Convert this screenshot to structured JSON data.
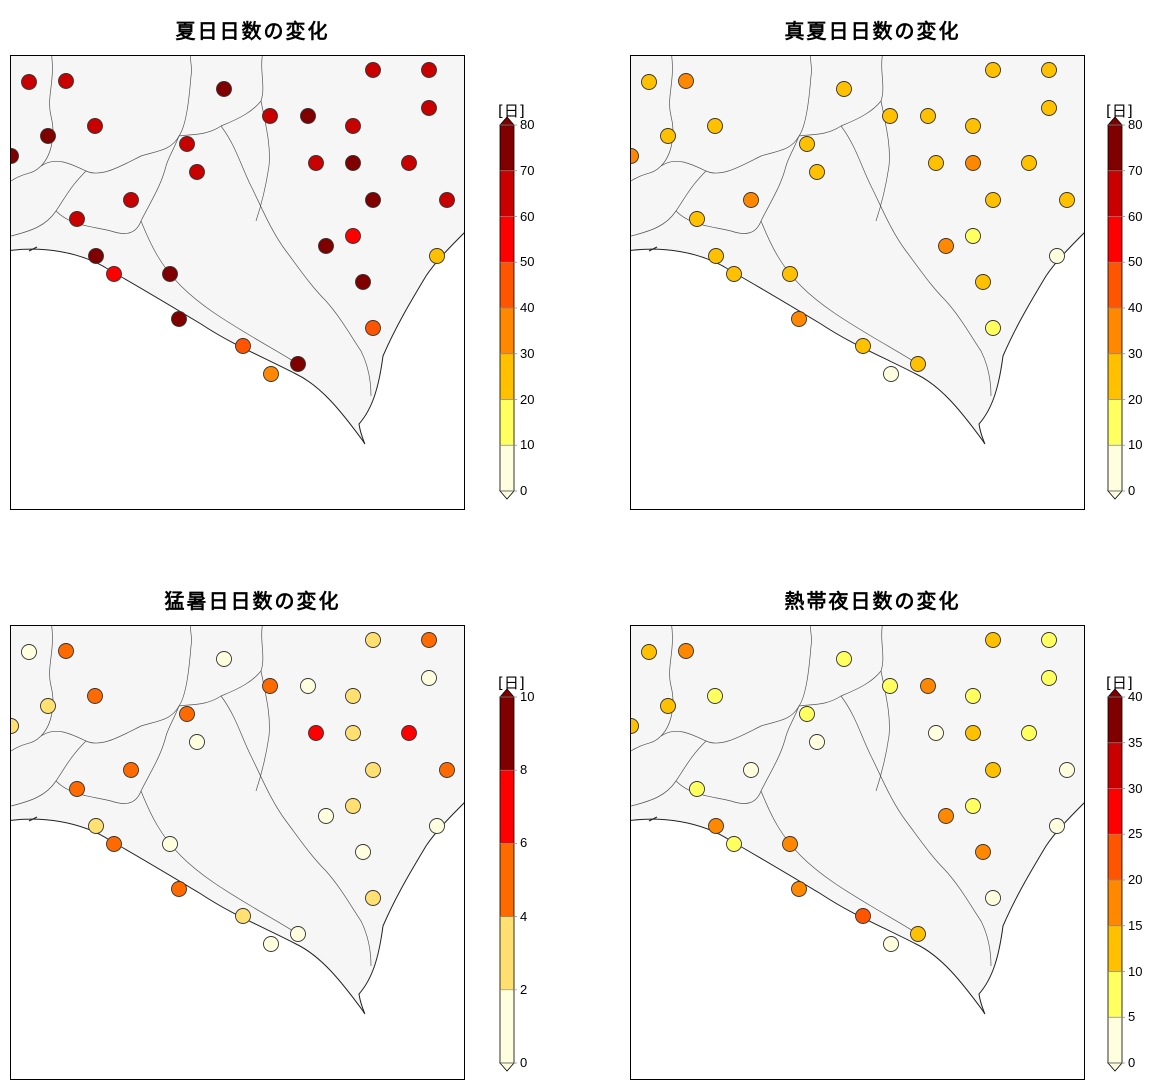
{
  "panels": [
    {
      "title": "夏日日数の変化",
      "legend": {
        "unit": "[日]",
        "ticks": [
          "80",
          "70",
          "60",
          "50",
          "40",
          "30",
          "20",
          "10",
          "0"
        ],
        "bin_colors": [
          "#FFFFE0",
          "#FFFF60",
          "#FFC000",
          "#FF8800",
          "#FF5500",
          "#FF0000",
          "#C80000",
          "#800000"
        ]
      },
      "stations": [
        {
          "id": "s01",
          "level": 6
        },
        {
          "id": "s02",
          "level": 6
        },
        {
          "id": "s03",
          "level": 7
        },
        {
          "id": "s04",
          "level": 6
        },
        {
          "id": "s05",
          "level": 6
        },
        {
          "id": "s06",
          "level": 7
        },
        {
          "id": "s07",
          "level": 6
        },
        {
          "id": "s08",
          "level": 6
        },
        {
          "id": "s09",
          "level": 6
        },
        {
          "id": "s10",
          "level": 7
        },
        {
          "id": "s11",
          "level": 6
        },
        {
          "id": "s12",
          "level": 6
        },
        {
          "id": "s13",
          "level": 7
        },
        {
          "id": "s14",
          "level": 6
        },
        {
          "id": "s15",
          "level": 6
        },
        {
          "id": "s16",
          "level": 7
        },
        {
          "id": "s17",
          "level": 6
        },
        {
          "id": "s18",
          "level": 6
        },
        {
          "id": "s19",
          "level": 7
        },
        {
          "id": "s20",
          "level": 6
        },
        {
          "id": "s21",
          "level": 6
        },
        {
          "id": "s22",
          "level": 2
        },
        {
          "id": "s23",
          "level": 7
        },
        {
          "id": "s24",
          "level": 7
        },
        {
          "id": "s25",
          "level": 5
        },
        {
          "id": "s26",
          "level": 5
        },
        {
          "id": "s27",
          "level": 7
        },
        {
          "id": "s28",
          "level": 7
        },
        {
          "id": "s29",
          "level": 7
        },
        {
          "id": "s30",
          "level": 4
        },
        {
          "id": "s31",
          "level": 4
        },
        {
          "id": "s32",
          "level": 3
        },
        {
          "id": "s33",
          "level": 7
        },
        {
          "id": "s34",
          "level": 7
        },
        {
          "id": "s35",
          "level": 7
        }
      ]
    },
    {
      "title": "真夏日日数の変化",
      "legend": {
        "unit": "[日]",
        "ticks": [
          "80",
          "70",
          "60",
          "50",
          "40",
          "30",
          "20",
          "10",
          "0"
        ],
        "bin_colors": [
          "#FFFFE0",
          "#FFFF60",
          "#FFC000",
          "#FF8800",
          "#FF5500",
          "#FF0000",
          "#C80000",
          "#800000"
        ]
      },
      "stations": [
        {
          "id": "s01",
          "level": 2
        },
        {
          "id": "s02",
          "level": 3
        },
        {
          "id": "s03",
          "level": 2
        },
        {
          "id": "s04",
          "level": 2
        },
        {
          "id": "s05",
          "level": 2
        },
        {
          "id": "s06",
          "level": 2
        },
        {
          "id": "s07",
          "level": 2
        },
        {
          "id": "s08",
          "level": 2
        },
        {
          "id": "s09",
          "level": 2
        },
        {
          "id": "s10",
          "level": 2
        },
        {
          "id": "s11",
          "level": 2
        },
        {
          "id": "s12",
          "level": 2
        },
        {
          "id": "s13",
          "level": 3
        },
        {
          "id": "s14",
          "level": 2
        },
        {
          "id": "s15",
          "level": 2
        },
        {
          "id": "s16",
          "level": 3
        },
        {
          "id": "s17",
          "level": 2
        },
        {
          "id": "s18",
          "level": 3
        },
        {
          "id": "s19",
          "level": 2
        },
        {
          "id": "s20",
          "level": 2
        },
        {
          "id": "s21",
          "level": 2
        },
        {
          "id": "s22",
          "level": 0
        },
        {
          "id": "s23",
          "level": 2
        },
        {
          "id": "s24",
          "level": 3
        },
        {
          "id": "s25",
          "level": 1
        },
        {
          "id": "s26",
          "level": 2
        },
        {
          "id": "s27",
          "level": 2
        },
        {
          "id": "s28",
          "level": 2
        },
        {
          "id": "s29",
          "level": 3
        },
        {
          "id": "s30",
          "level": 1
        },
        {
          "id": "s31",
          "level": 2
        },
        {
          "id": "s32",
          "level": 0
        },
        {
          "id": "s33",
          "level": 2
        },
        {
          "id": "s34",
          "level": 1
        },
        {
          "id": "s35",
          "level": 2
        }
      ]
    },
    {
      "title": "猛暑日日数の変化",
      "legend": {
        "unit": "[日]",
        "ticks": [
          "10",
          "8",
          "6",
          "4",
          "2",
          "0"
        ],
        "bin_colors": [
          "#FFFFE0",
          "#FFE070",
          "#FF6A00",
          "#FF0000",
          "#800000"
        ]
      },
      "stations": [
        {
          "id": "s01",
          "level": 0
        },
        {
          "id": "s02",
          "level": 2
        },
        {
          "id": "s03",
          "level": 0
        },
        {
          "id": "s04",
          "level": 1
        },
        {
          "id": "s05",
          "level": 2
        },
        {
          "id": "s06",
          "level": 1
        },
        {
          "id": "s07",
          "level": 2
        },
        {
          "id": "s08",
          "level": 2
        },
        {
          "id": "s09",
          "level": 2
        },
        {
          "id": "s10",
          "level": 0
        },
        {
          "id": "s11",
          "level": 1
        },
        {
          "id": "s12",
          "level": 0
        },
        {
          "id": "s13",
          "level": 1
        },
        {
          "id": "s14",
          "level": 0
        },
        {
          "id": "s15",
          "level": 3
        },
        {
          "id": "s16",
          "level": 1
        },
        {
          "id": "s17",
          "level": 3
        },
        {
          "id": "s18",
          "level": 2
        },
        {
          "id": "s19",
          "level": 1
        },
        {
          "id": "s20",
          "level": 2
        },
        {
          "id": "s21",
          "level": 2
        },
        {
          "id": "s22",
          "level": 0
        },
        {
          "id": "s23",
          "level": 1
        },
        {
          "id": "s24",
          "level": 0
        },
        {
          "id": "s25",
          "level": 1
        },
        {
          "id": "s26",
          "level": 2
        },
        {
          "id": "s27",
          "level": 0
        },
        {
          "id": "s28",
          "level": 0
        },
        {
          "id": "s29",
          "level": 2
        },
        {
          "id": "s30",
          "level": 1
        },
        {
          "id": "s31",
          "level": 1
        },
        {
          "id": "s32",
          "level": 0
        },
        {
          "id": "s33",
          "level": 0
        },
        {
          "id": "s34",
          "level": 0
        },
        {
          "id": "s35",
          "level": 1
        }
      ]
    },
    {
      "title": "熱帯夜日数の変化",
      "legend": {
        "unit": "[日]",
        "ticks": [
          "40",
          "35",
          "30",
          "25",
          "20",
          "15",
          "10",
          "5",
          "0"
        ],
        "bin_colors": [
          "#FFFFE0",
          "#FFFF60",
          "#FFC000",
          "#FF8800",
          "#FF5500",
          "#FF0000",
          "#C80000",
          "#800000"
        ]
      },
      "stations": [
        {
          "id": "s01",
          "level": 2
        },
        {
          "id": "s02",
          "level": 3
        },
        {
          "id": "s03",
          "level": 1
        },
        {
          "id": "s04",
          "level": 2
        },
        {
          "id": "s05",
          "level": 1
        },
        {
          "id": "s06",
          "level": 2
        },
        {
          "id": "s07",
          "level": 1
        },
        {
          "id": "s08",
          "level": 1
        },
        {
          "id": "s09",
          "level": 1
        },
        {
          "id": "s10",
          "level": 3
        },
        {
          "id": "s11",
          "level": 1
        },
        {
          "id": "s12",
          "level": 1
        },
        {
          "id": "s13",
          "level": 2
        },
        {
          "id": "s14",
          "level": 0
        },
        {
          "id": "s15",
          "level": 0
        },
        {
          "id": "s16",
          "level": 2
        },
        {
          "id": "s17",
          "level": 1
        },
        {
          "id": "s18",
          "level": 0
        },
        {
          "id": "s19",
          "level": 2
        },
        {
          "id": "s20",
          "level": 0
        },
        {
          "id": "s21",
          "level": 1
        },
        {
          "id": "s22",
          "level": 0
        },
        {
          "id": "s23",
          "level": 3
        },
        {
          "id": "s24",
          "level": 3
        },
        {
          "id": "s25",
          "level": 1
        },
        {
          "id": "s26",
          "level": 1
        },
        {
          "id": "s27",
          "level": 3
        },
        {
          "id": "s28",
          "level": 3
        },
        {
          "id": "s29",
          "level": 3
        },
        {
          "id": "s30",
          "level": 0
        },
        {
          "id": "s31",
          "level": 4
        },
        {
          "id": "s32",
          "level": 0
        },
        {
          "id": "s33",
          "level": 2
        },
        {
          "id": "s34",
          "level": 3
        },
        {
          "id": "s35",
          "level": 2
        }
      ]
    }
  ]
}
